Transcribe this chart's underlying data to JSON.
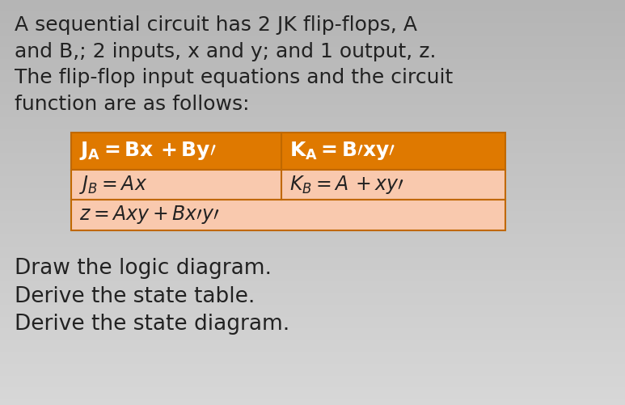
{
  "bg_color_top": "#d4d4d4",
  "bg_color_bottom": "#b8b8b8",
  "text_color": "#222222",
  "title_lines": [
    "A sequential circuit has 2 JK flip-flops, A",
    "and B,; 2 inputs, x and y; and 1 output, z.",
    "The flip-flop input equations and the circuit",
    "function are as follows:"
  ],
  "footer_lines": [
    "Draw the logic diagram.",
    "Derive the state table.",
    "Derive the state diagram."
  ],
  "table_header_bg": "#df7900",
  "table_row_bg": "#f9c9ae",
  "table_border_color": "#c06800",
  "table_header_text_color": "#ffffff",
  "table_row_text_color": "#222222",
  "font_size_title": 18,
  "font_size_table_header": 18,
  "font_size_table_row": 17,
  "font_size_footer": 19
}
